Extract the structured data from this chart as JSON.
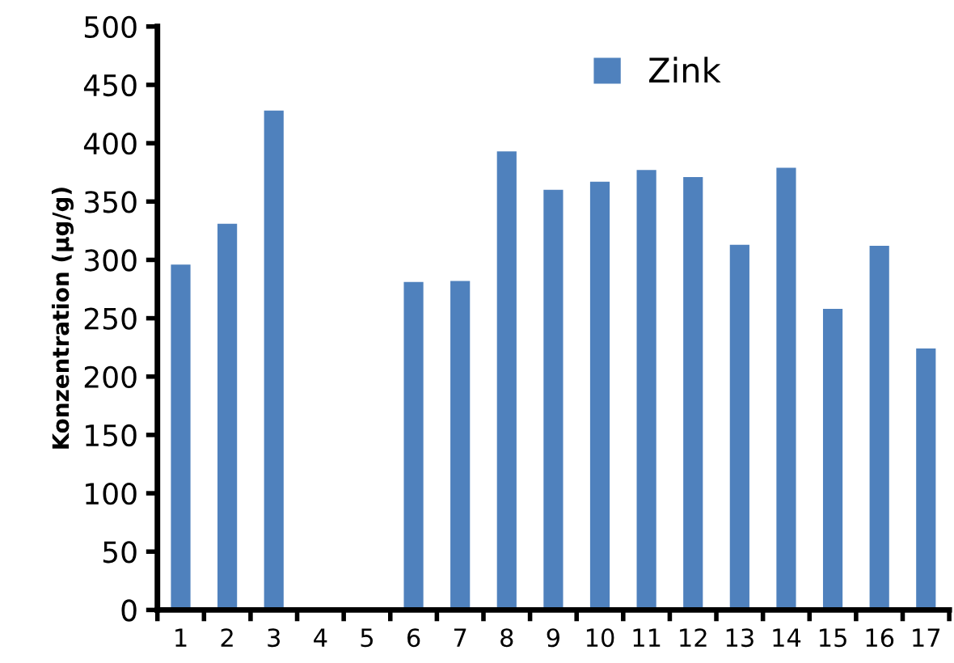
{
  "chart_data": {
    "type": "bar",
    "ylabel": "Konzentration (µg/g)",
    "categories": [
      "1",
      "2",
      "3",
      "4",
      "5",
      "6",
      "7",
      "8",
      "9",
      "10",
      "11",
      "12",
      "13",
      "14",
      "15",
      "16",
      "17"
    ],
    "series": [
      {
        "name": "Zink",
        "color": "#4f81bd",
        "values": [
          296,
          331,
          428,
          null,
          null,
          281,
          282,
          393,
          360,
          367,
          377,
          371,
          313,
          379,
          258,
          312,
          224
        ]
      }
    ],
    "ylim": [
      0,
      500
    ],
    "yticks": [
      0,
      50,
      100,
      150,
      200,
      250,
      300,
      350,
      400,
      450,
      500
    ],
    "grid": false,
    "legend": "top right"
  }
}
